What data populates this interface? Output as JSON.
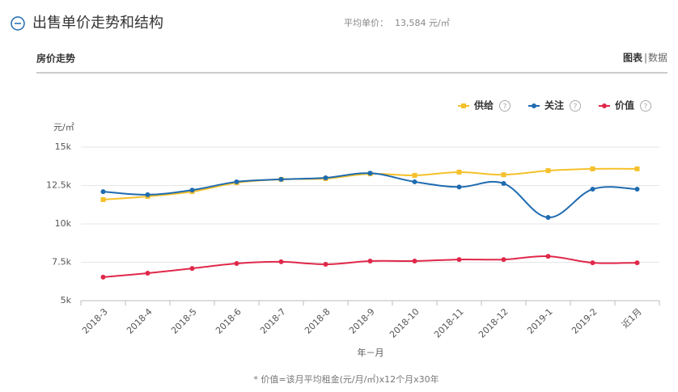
{
  "header": {
    "title": "出售单价走势和结构",
    "avg_label": "平均单价：",
    "avg_value": "13,584 元/㎡"
  },
  "tabs": {
    "title": "房价走势",
    "chart_tab": "图表",
    "separator": "|",
    "data_tab": "数据"
  },
  "chart_data": {
    "type": "line",
    "y_unit": "元/㎡",
    "x_label": "年－月",
    "footnote": "* 价值=该月平均租金(元/月/㎡)x12个月x30年",
    "help_icon": "?",
    "categories": [
      "2018-3",
      "2018-4",
      "2018-5",
      "2018-6",
      "2018-7",
      "2018-8",
      "2018-9",
      "2018-10",
      "2018-11",
      "2018-12",
      "2019-1",
      "2019-2",
      "近1月"
    ],
    "series": [
      {
        "name": "供给",
        "color": "#f5c12b",
        "marker": "square",
        "values": [
          11580,
          11790,
          12100,
          12680,
          12900,
          12950,
          13260,
          13160,
          13370,
          13200,
          13470,
          13580,
          13584
        ]
      },
      {
        "name": "关注",
        "color": "#1f6bb0",
        "marker": "circle",
        "values": [
          12100,
          11900,
          12200,
          12740,
          12900,
          13000,
          13300,
          12740,
          12400,
          12630,
          10420,
          12260,
          12260
        ]
      },
      {
        "name": "价值",
        "color": "#e0284a",
        "marker": "circle",
        "values": [
          6530,
          6790,
          7100,
          7420,
          7530,
          7370,
          7580,
          7580,
          7680,
          7680,
          7890,
          7470,
          7470
        ]
      }
    ],
    "ylim": [
      5000,
      15000
    ],
    "yticks": [
      {
        "value": 5000,
        "label": "5k"
      },
      {
        "value": 7500,
        "label": "7.5k"
      },
      {
        "value": 10000,
        "label": "10k"
      },
      {
        "value": 12500,
        "label": "12.5k"
      },
      {
        "value": 15000,
        "label": "15k"
      }
    ],
    "grid": true,
    "smooth": true,
    "legend": "top-right"
  }
}
